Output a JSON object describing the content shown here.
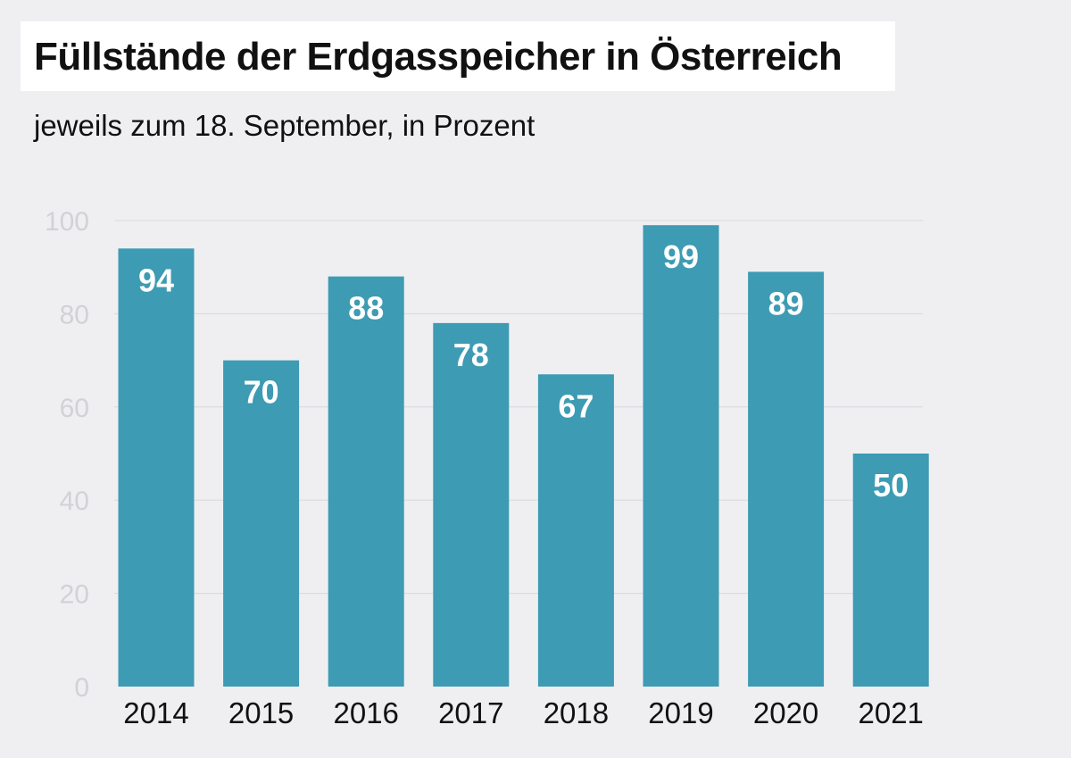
{
  "chart_data": {
    "type": "bar",
    "title": "Füllstände der Erdgasspeicher in Österreich",
    "subtitle": "jeweils zum 18. September, in Prozent",
    "categories": [
      "2014",
      "2015",
      "2016",
      "2017",
      "2018",
      "2019",
      "2020",
      "2021"
    ],
    "values": [
      94,
      70,
      88,
      78,
      67,
      99,
      89,
      50
    ],
    "data_labels": [
      "94",
      "70",
      "88",
      "78",
      "67",
      "99",
      "89",
      "50"
    ],
    "ylim": [
      0,
      100
    ],
    "yticks": [
      0,
      20,
      40,
      60,
      80,
      100
    ],
    "ytick_labels": [
      "0",
      "20",
      "40",
      "60",
      "80",
      "100"
    ],
    "xlabel": "",
    "ylabel": "",
    "grid": true,
    "legend": "none",
    "bar_color": "#3d9bb3",
    "grid_color": "#d8d8dc"
  }
}
